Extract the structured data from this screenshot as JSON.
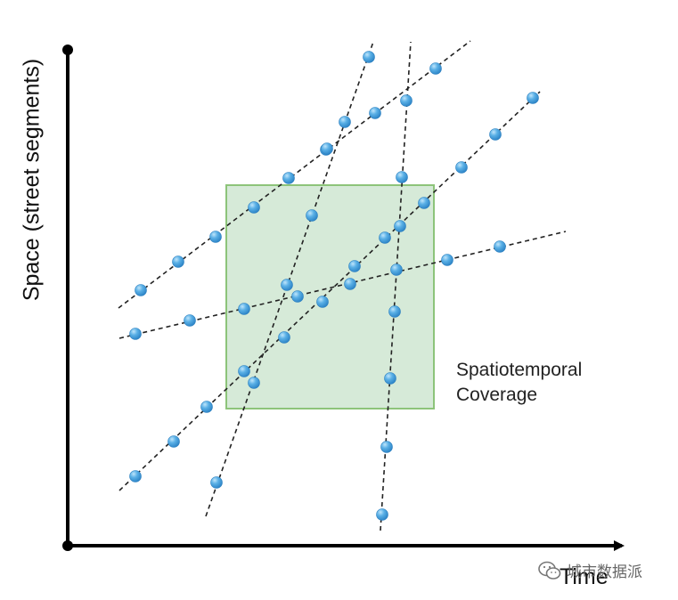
{
  "axes": {
    "y_label": "Space (street segments)",
    "x_label": "Time"
  },
  "coverage_box": {
    "label_line1": "Spatiotemporal",
    "label_line2": "Coverage",
    "fill": "#d6ead8",
    "stroke": "#8dc47a"
  },
  "trajectories": [
    {
      "points": [
        [
          158,
          326
        ],
        [
          200,
          294
        ],
        [
          242,
          266
        ],
        [
          285,
          233
        ],
        [
          324,
          200
        ],
        [
          366,
          168
        ],
        [
          421,
          127
        ],
        [
          489,
          77
        ]
      ],
      "ends": [
        [
          133,
          346
        ],
        [
          528,
          46
        ]
      ]
    },
    {
      "points": [
        [
          152,
          375
        ],
        [
          213,
          360
        ],
        [
          274,
          347
        ],
        [
          334,
          333
        ],
        [
          393,
          319
        ],
        [
          502,
          292
        ],
        [
          561,
          277
        ]
      ],
      "ends": [
        [
          134,
          380
        ],
        [
          635,
          260
        ]
      ]
    },
    {
      "points": [
        [
          152,
          535
        ],
        [
          195,
          496
        ],
        [
          232,
          457
        ],
        [
          274,
          417
        ],
        [
          319,
          379
        ],
        [
          362,
          339
        ],
        [
          398,
          299
        ],
        [
          432,
          267
        ],
        [
          476,
          228
        ],
        [
          518,
          188
        ],
        [
          556,
          151
        ],
        [
          598,
          110
        ]
      ],
      "ends": [
        [
          134,
          551
        ],
        [
          606,
          103
        ]
      ]
    },
    {
      "points": [
        [
          243,
          542
        ],
        [
          285,
          430
        ],
        [
          322,
          320
        ],
        [
          350,
          242
        ],
        [
          367,
          167
        ],
        [
          387,
          137
        ],
        [
          414,
          64
        ]
      ],
      "ends": [
        [
          231,
          580
        ],
        [
          419,
          47
        ]
      ]
    },
    {
      "points": [
        [
          429,
          578
        ],
        [
          434,
          502
        ],
        [
          438,
          425
        ],
        [
          443,
          350
        ],
        [
          445,
          303
        ],
        [
          449,
          254
        ],
        [
          451,
          199
        ],
        [
          456,
          113
        ]
      ],
      "ends": [
        [
          427,
          596
        ],
        [
          461,
          47
        ]
      ]
    }
  ],
  "colors": {
    "axis": "#000000",
    "dot": "#4aa3df",
    "dot_light": "#9fd3f4",
    "dash": "#222222"
  },
  "watermark": {
    "text": "城市数据派",
    "icon": "wechat-icon"
  }
}
